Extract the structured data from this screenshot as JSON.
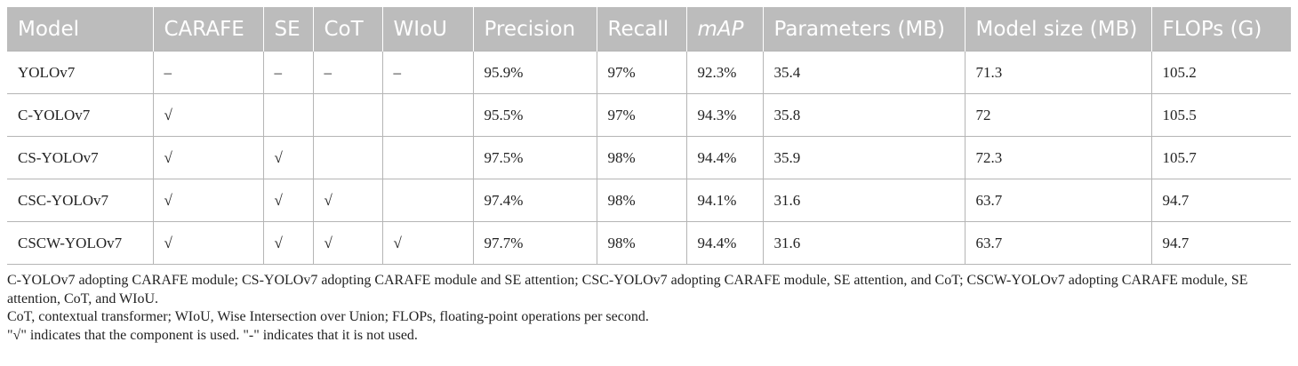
{
  "table": {
    "headers": [
      "Model",
      "CARAFE",
      "SE",
      "CoT",
      "WIoU",
      "Precision",
      "Recall",
      "mAP",
      "Parameters (MB)",
      "Model size (MB)",
      "FLOPs (G)"
    ],
    "rows": [
      [
        "YOLOv7",
        "–",
        "–",
        "–",
        "–",
        "95.9%",
        "97%",
        "92.3%",
        "35.4",
        "71.3",
        "105.2"
      ],
      [
        "C-YOLOv7",
        "√",
        "",
        "",
        "",
        "95.5%",
        "97%",
        "94.3%",
        "35.8",
        "72",
        "105.5"
      ],
      [
        "CS-YOLOv7",
        "√",
        "√",
        "",
        "",
        "97.5%",
        "98%",
        "94.4%",
        "35.9",
        "72.3",
        "105.7"
      ],
      [
        "CSC-YOLOv7",
        "√",
        "√",
        "√",
        "",
        "97.4%",
        "98%",
        "94.1%",
        "31.6",
        "63.7",
        "94.7"
      ],
      [
        "CSCW-YOLOv7",
        "√",
        "√",
        "√",
        "√",
        "97.7%",
        "98%",
        "94.4%",
        "31.6",
        "63.7",
        "94.7"
      ]
    ]
  },
  "notes": [
    "C-YOLOv7 adopting CARAFE module; CS-YOLOv7 adopting CARAFE module and SE attention; CSC-YOLOv7 adopting CARAFE module, SE attention, and CoT; CSCW-YOLOv7 adopting CARAFE module, SE attention, CoT, and WIoU.",
    "CoT, contextual transformer; WIoU, Wise Intersection over Union; FLOPs, floating-point operations per second.",
    "\"√\" indicates that the component is used. \"-\" indicates that it is not used."
  ]
}
